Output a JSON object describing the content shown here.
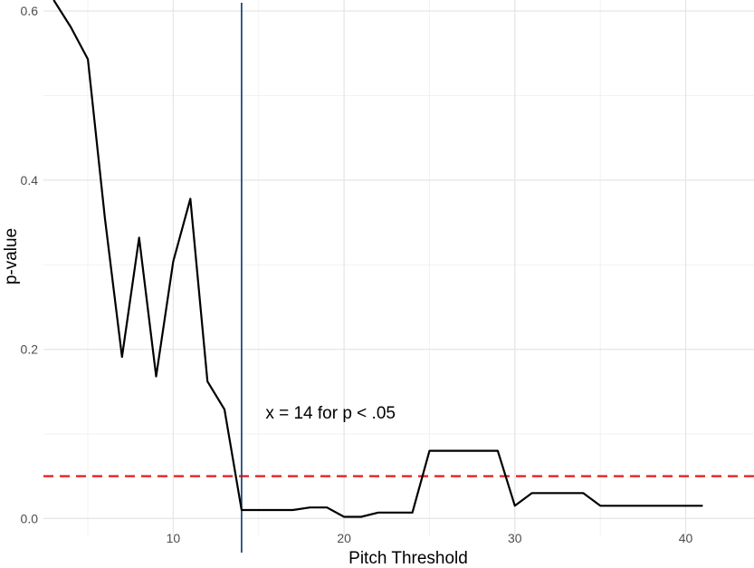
{
  "chart_data": {
    "type": "line",
    "xlabel": "Pitch Threshold",
    "ylabel": "p-value",
    "xlim": [
      2.4,
      44.0
    ],
    "ylim": [
      -0.02,
      0.613
    ],
    "xticks": [
      10,
      20,
      30,
      40
    ],
    "xtick_labels": [
      "10",
      "20",
      "30",
      "40"
    ],
    "yticks": [
      0.0,
      0.2,
      0.4,
      0.6
    ],
    "ytick_labels": [
      "0.0",
      "0.2",
      "0.4",
      "0.6"
    ],
    "grid": true,
    "series": [
      {
        "color": "#000000",
        "x": [
          3,
          4,
          5,
          6,
          7,
          8,
          9,
          10,
          11,
          12,
          13,
          14,
          15,
          16,
          17,
          18,
          19,
          20,
          21,
          22,
          23,
          24,
          25,
          26,
          27,
          28,
          29,
          30,
          31,
          32,
          33,
          34,
          35,
          36,
          37,
          38,
          39,
          40,
          41
        ],
        "y": [
          0.613,
          0.581,
          0.543,
          0.355,
          0.191,
          0.332,
          0.168,
          0.304,
          0.378,
          0.162,
          0.129,
          0.01,
          0.01,
          0.01,
          0.01,
          0.013,
          0.013,
          0.002,
          0.002,
          0.007,
          0.007,
          0.007,
          0.08,
          0.08,
          0.08,
          0.08,
          0.08,
          0.015,
          0.03,
          0.03,
          0.03,
          0.03,
          0.015,
          0.015,
          0.015,
          0.015,
          0.015,
          0.015,
          0.015
        ]
      }
    ],
    "reference_lines": [
      {
        "orientation": "horizontal",
        "value": 0.05,
        "color": "#e41a1c",
        "style": "dashed"
      },
      {
        "orientation": "vertical",
        "value": 14,
        "color": "#1f4e79",
        "style": "solid"
      }
    ],
    "annotations": [
      {
        "text": "x = 14 for p < .05",
        "x": 15.4,
        "y": 0.118
      }
    ]
  }
}
